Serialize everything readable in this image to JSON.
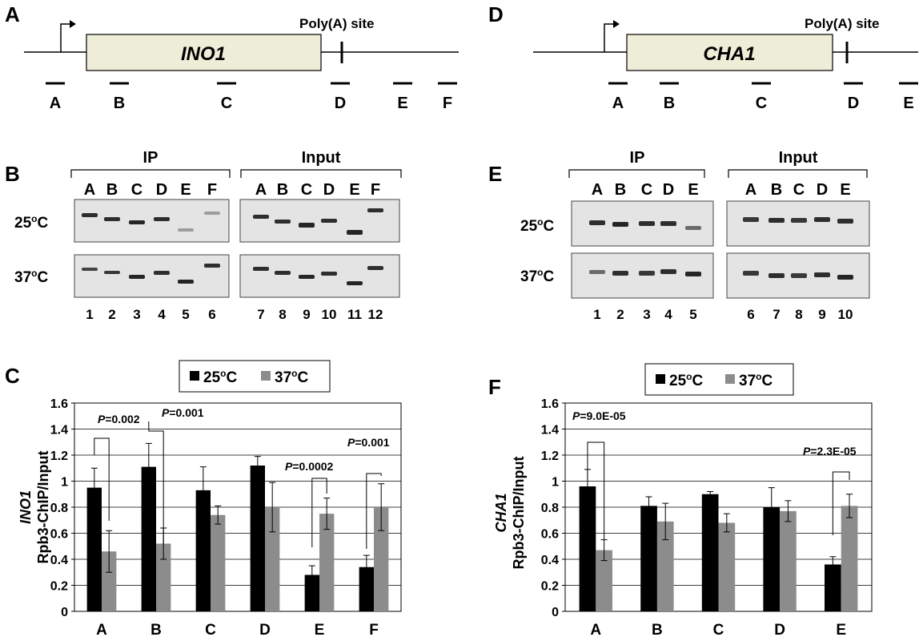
{
  "panels": {
    "A": "A",
    "B": "B",
    "C": "C",
    "D": "D",
    "E": "E",
    "F": "F"
  },
  "gene_maps": [
    {
      "gene": "INO1",
      "polya_label": "Poly(A) site",
      "segments": [
        "A",
        "B",
        "C",
        "D",
        "E",
        "F"
      ]
    },
    {
      "gene": "CHA1",
      "polya_label": "Poly(A) site",
      "segments": [
        "A",
        "B",
        "C",
        "D",
        "E"
      ]
    }
  ],
  "gels": [
    {
      "ip_label": "IP",
      "input_label": "Input",
      "lane_letters": [
        "A",
        "B",
        "C",
        "D",
        "E",
        "F"
      ],
      "rows": [
        {
          "temp": "25",
          "unit": "C"
        },
        {
          "temp": "37",
          "unit": "C"
        }
      ],
      "lane_numbers_ip": [
        "1",
        "2",
        "3",
        "4",
        "5",
        "6"
      ],
      "lane_numbers_input": [
        "7",
        "8",
        "9",
        "10",
        "11",
        "12"
      ]
    },
    {
      "ip_label": "IP",
      "input_label": "Input",
      "lane_letters": [
        "A",
        "B",
        "C",
        "D",
        "E"
      ],
      "rows": [
        {
          "temp": "25",
          "unit": "C"
        },
        {
          "temp": "37",
          "unit": "C"
        }
      ],
      "lane_numbers_ip": [
        "1",
        "2",
        "3",
        "4",
        "5"
      ],
      "lane_numbers_input": [
        "6",
        "7",
        "8",
        "9",
        "10"
      ]
    }
  ],
  "chart_data": [
    {
      "type": "bar",
      "ylabel_gene": "INO1",
      "ylabel": "Rpb3-ChIP/Input",
      "categories": [
        "A",
        "B",
        "C",
        "D",
        "E",
        "F"
      ],
      "ylim": [
        0,
        1.6
      ],
      "yticks": [
        "0",
        "0.2",
        "0.4",
        "0.6",
        "0.8",
        "1",
        "1.2",
        "1.4",
        "1.6"
      ],
      "legend": [
        {
          "label": "25",
          "unit": "C",
          "color": "#000000"
        },
        {
          "label": "37",
          "unit": "C",
          "color": "#8c8c8c"
        }
      ],
      "series": [
        {
          "color": "#000000",
          "values": [
            0.95,
            1.11,
            0.93,
            1.12,
            0.28,
            0.34
          ],
          "errors": [
            0.15,
            0.18,
            0.18,
            0.07,
            0.07,
            0.09
          ]
        },
        {
          "color": "#8c8c8c",
          "values": [
            0.46,
            0.52,
            0.74,
            0.8,
            0.75,
            0.8
          ],
          "errors": [
            0.16,
            0.12,
            0.07,
            0.19,
            0.12,
            0.18
          ]
        }
      ],
      "pvalues": [
        {
          "category": "A",
          "p": "P",
          "text": "=0.002"
        },
        {
          "category": "B",
          "p": "P",
          "text": "=0.001"
        },
        {
          "category": "E",
          "p": "P",
          "text": "=0.0002"
        },
        {
          "category": "F",
          "p": "P",
          "text": "=0.001"
        }
      ],
      "grid": true
    },
    {
      "type": "bar",
      "ylabel_gene": "CHA1",
      "ylabel": "Rpb3-ChIP/Input",
      "categories": [
        "A",
        "B",
        "C",
        "D",
        "E"
      ],
      "ylim": [
        0,
        1.6
      ],
      "yticks": [
        "0",
        "0.2",
        "0.4",
        "0.6",
        "0.8",
        "1",
        "1.2",
        "1.4",
        "1.6"
      ],
      "legend": [
        {
          "label": "25",
          "unit": "C",
          "color": "#000000"
        },
        {
          "label": "37",
          "unit": "C",
          "color": "#8c8c8c"
        }
      ],
      "series": [
        {
          "color": "#000000",
          "values": [
            0.96,
            0.81,
            0.9,
            0.8,
            0.36
          ],
          "errors": [
            0.13,
            0.07,
            0.02,
            0.15,
            0.06
          ]
        },
        {
          "color": "#8c8c8c",
          "values": [
            0.47,
            0.69,
            0.68,
            0.77,
            0.81
          ],
          "errors": [
            0.08,
            0.14,
            0.07,
            0.08,
            0.09
          ]
        }
      ],
      "pvalues": [
        {
          "category": "A",
          "p": "P",
          "text": "=9.0E-05"
        },
        {
          "category": "E",
          "p": "P",
          "text": "=2.3E-05"
        }
      ],
      "grid": true
    }
  ]
}
